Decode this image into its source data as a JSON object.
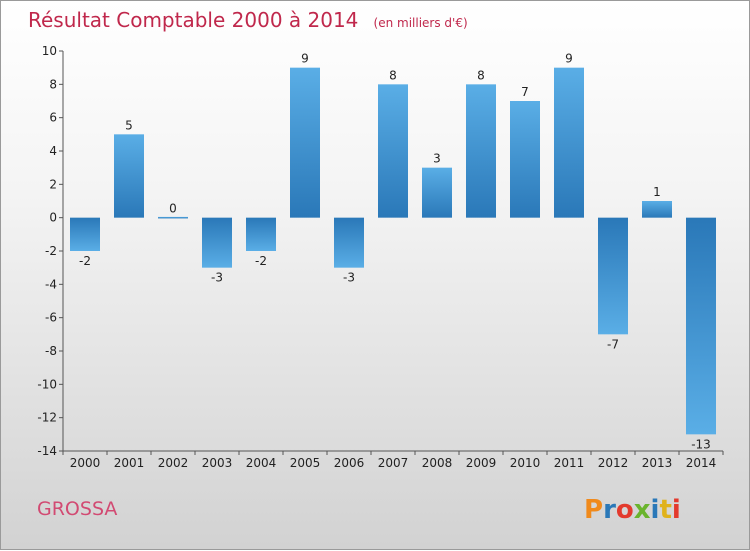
{
  "chart_data": {
    "type": "bar",
    "title": "Résultat Comptable 2000 à 2014",
    "unit": "(en milliers d'€)",
    "categories": [
      "2000",
      "2001",
      "2002",
      "2003",
      "2004",
      "2005",
      "2006",
      "2007",
      "2008",
      "2009",
      "2010",
      "2011",
      "2012",
      "2013",
      "2014"
    ],
    "values": [
      -2,
      5,
      0,
      -3,
      -2,
      9,
      -3,
      8,
      3,
      8,
      7,
      9,
      -7,
      1,
      -13
    ],
    "value_labels": [
      "-2",
      "5",
      "0",
      "-3",
      "-2",
      "9",
      "-3",
      "8",
      "3",
      "8",
      "7",
      "9",
      "-7",
      "1",
      "-13"
    ],
    "ylim": [
      -14,
      10
    ],
    "yticks": [
      10,
      8,
      6,
      4,
      2,
      0,
      -2,
      -4,
      -6,
      -8,
      -10,
      -12,
      -14
    ],
    "ytick_labels": [
      "10",
      "8",
      "6",
      "4",
      "2",
      "0",
      "-2",
      "-4",
      "-6",
      "-8",
      "-10",
      "-12",
      "-14"
    ],
    "grid": false,
    "bar_colors": {
      "light": "#5aaee6",
      "dark": "#2a78b8"
    }
  },
  "footer": {
    "commune": "GROSSA",
    "logo_text": "Proxiti"
  }
}
